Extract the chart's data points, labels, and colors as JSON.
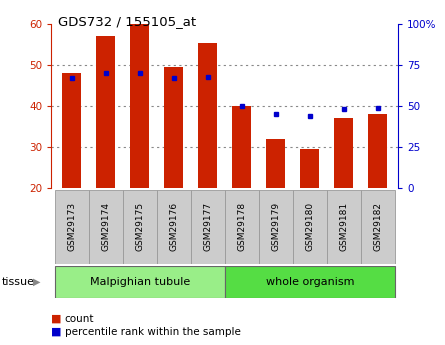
{
  "title": "GDS732 / 155105_at",
  "samples": [
    "GSM29173",
    "GSM29174",
    "GSM29175",
    "GSM29176",
    "GSM29177",
    "GSM29178",
    "GSM29179",
    "GSM29180",
    "GSM29181",
    "GSM29182"
  ],
  "count_values": [
    48,
    57,
    60,
    49.5,
    55.5,
    40,
    32,
    29.5,
    37,
    38
  ],
  "percentile_values": [
    67,
    70,
    70,
    67,
    68,
    50,
    45,
    44,
    48,
    49
  ],
  "bar_bottom": 20,
  "ylim_left": [
    20,
    60
  ],
  "ylim_right": [
    0,
    100
  ],
  "yticks_left": [
    20,
    30,
    40,
    50,
    60
  ],
  "yticks_right": [
    0,
    25,
    50,
    75,
    100
  ],
  "ytick_labels_right": [
    "0",
    "25",
    "50",
    "75",
    "100%"
  ],
  "bar_color": "#cc2200",
  "dot_color": "#0000cc",
  "grid_color": "#888888",
  "tissue_groups": [
    {
      "label": "Malpighian tubule",
      "start": 0,
      "end": 5,
      "color": "#99ee88"
    },
    {
      "label": "whole organism",
      "start": 5,
      "end": 10,
      "color": "#55dd44"
    }
  ],
  "tissue_label": "tissue",
  "legend_items": [
    {
      "label": "count",
      "color": "#cc2200"
    },
    {
      "label": "percentile rank within the sample",
      "color": "#0000cc"
    }
  ],
  "bar_width": 0.55,
  "background_color": "#ffffff",
  "tick_box_color": "#cccccc",
  "spine_color": "#000000"
}
